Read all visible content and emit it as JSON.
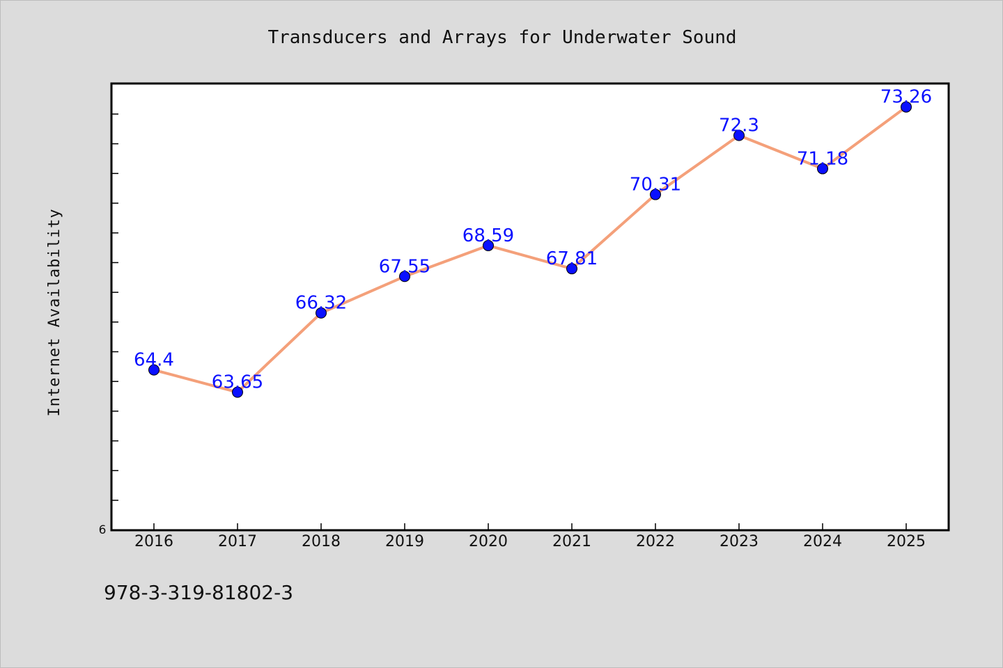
{
  "colors": {
    "background": "#dcdcdc",
    "plot_background": "#ffffff",
    "line": "#f4a07a",
    "marker": "#0a10ff",
    "data_label": "#0a10ff"
  },
  "footer": {
    "isbn": "978-3-319-81802-3"
  },
  "chart_data": {
    "type": "line",
    "title": "Transducers and Arrays for Underwater Sound",
    "xlabel": "",
    "ylabel": "Internet Availability",
    "categories": [
      "2016",
      "2017",
      "2018",
      "2019",
      "2020",
      "2021",
      "2022",
      "2023",
      "2024",
      "2025"
    ],
    "series": [
      {
        "values": [
          64.4,
          63.65,
          66.32,
          67.55,
          68.59,
          67.81,
          70.31,
          72.3,
          71.18,
          73.26
        ]
      }
    ],
    "data_labels": [
      "64.4",
      "63.65",
      "66.32",
      "67.55",
      "68.59",
      "67.81",
      "70.31",
      "72.3",
      "71.18",
      "73.26"
    ],
    "ylim": [
      59,
      74.05
    ],
    "y_tick_labels": [
      "6"
    ],
    "grid": false,
    "legend": "none"
  }
}
